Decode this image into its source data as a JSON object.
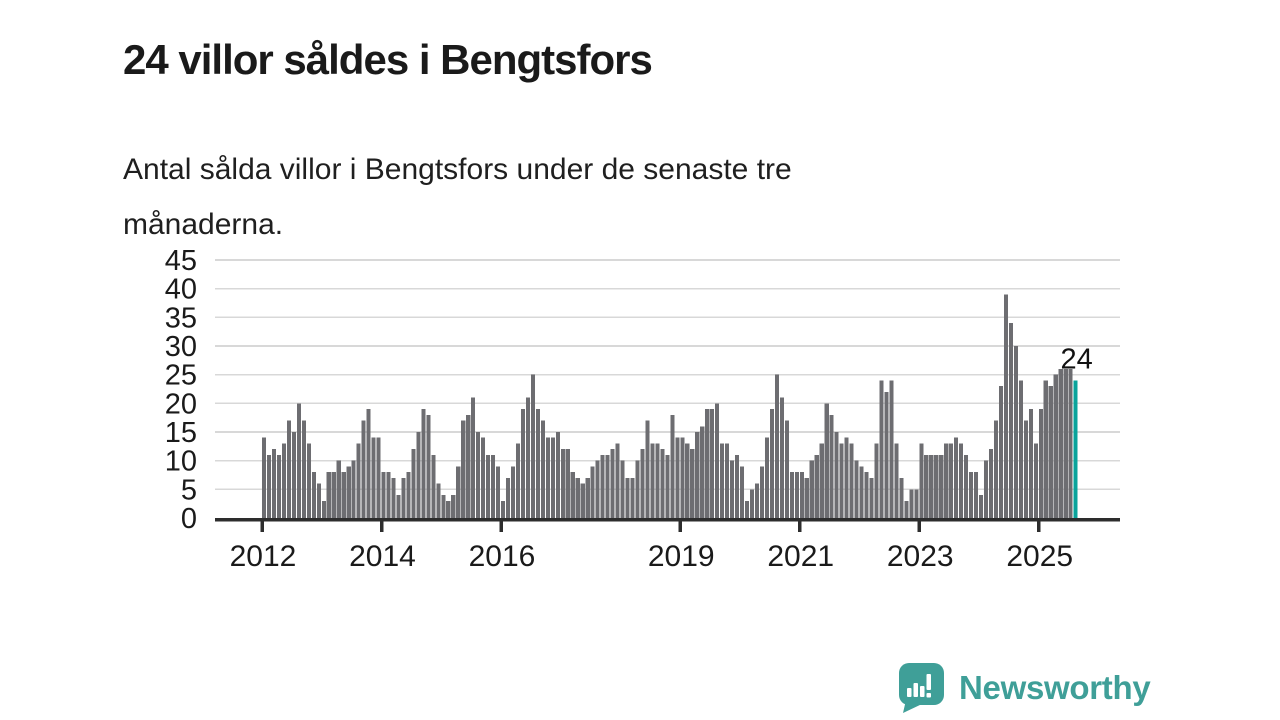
{
  "chart_data": {
    "type": "bar",
    "title": "24 villor såldes i Bengtsfors",
    "subtitle": "Antal sålda villor i Bengtsfors under de senaste tre månaderna.",
    "xlabel": "",
    "ylabel": "",
    "ylim": [
      0,
      45
    ],
    "yticks": [
      0,
      5,
      10,
      15,
      20,
      25,
      30,
      35,
      40,
      45
    ],
    "grid": "horizontal",
    "legend": "none",
    "frequency": "monthly-rolling-3-month-sum",
    "x_start": "2012-01",
    "x_end": "2025-08",
    "xticks": [
      2012,
      2014,
      2016,
      2019,
      2021,
      2023,
      2025
    ],
    "bar_color": "#6d6d71",
    "series": [
      {
        "year": 2012,
        "values": [
          14,
          11,
          12,
          11,
          13,
          17,
          15,
          20,
          17,
          13,
          8,
          6
        ]
      },
      {
        "year": 2013,
        "values": [
          3,
          8,
          8,
          10,
          8,
          9,
          10,
          13,
          17,
          19,
          14,
          14
        ]
      },
      {
        "year": 2014,
        "values": [
          8,
          8,
          7,
          4,
          7,
          8,
          12,
          15,
          19,
          18,
          11,
          6
        ]
      },
      {
        "year": 2015,
        "values": [
          4,
          3,
          4,
          9,
          17,
          18,
          21,
          15,
          14,
          11,
          11,
          9
        ]
      },
      {
        "year": 2016,
        "values": [
          3,
          7,
          9,
          13,
          19,
          21,
          25,
          19,
          17,
          14,
          14,
          15
        ]
      },
      {
        "year": 2017,
        "values": [
          12,
          12,
          8,
          7,
          6,
          7,
          9,
          10,
          11,
          11,
          12,
          13
        ]
      },
      {
        "year": 2018,
        "values": [
          10,
          7,
          7,
          10,
          12,
          17,
          13,
          13,
          12,
          11,
          18,
          14
        ]
      },
      {
        "year": 2019,
        "values": [
          14,
          13,
          12,
          15,
          16,
          19,
          19,
          20,
          13,
          13,
          10,
          11
        ]
      },
      {
        "year": 2020,
        "values": [
          9,
          3,
          5,
          6,
          9,
          14,
          19,
          25,
          21,
          17,
          8,
          8
        ]
      },
      {
        "year": 2021,
        "values": [
          8,
          7,
          10,
          11,
          13,
          20,
          18,
          15,
          13,
          14,
          13,
          10
        ]
      },
      {
        "year": 2022,
        "values": [
          9,
          8,
          7,
          13,
          24,
          22,
          24,
          13,
          7,
          3,
          5,
          5
        ]
      },
      {
        "year": 2023,
        "values": [
          13,
          11,
          11,
          11,
          11,
          13,
          13,
          14,
          13,
          11,
          8,
          8
        ]
      },
      {
        "year": 2024,
        "values": [
          4,
          10,
          12,
          17,
          23,
          39,
          34,
          30,
          24,
          17,
          19,
          13
        ]
      },
      {
        "year": 2025,
        "values": [
          19,
          24,
          23,
          25,
          26,
          26,
          26,
          24
        ]
      }
    ],
    "highlight": {
      "position": "last",
      "value": 24,
      "label": "24",
      "color": "#0aa39b"
    },
    "axis_color": "#2d2d2d",
    "gridline_color": "#d8d8d8",
    "tick_label_color": "#1a1a1a"
  },
  "branding": {
    "name": "Newsworthy",
    "color": "#3f9f98",
    "logo": "speech-bubble-bar-chart-icon"
  }
}
